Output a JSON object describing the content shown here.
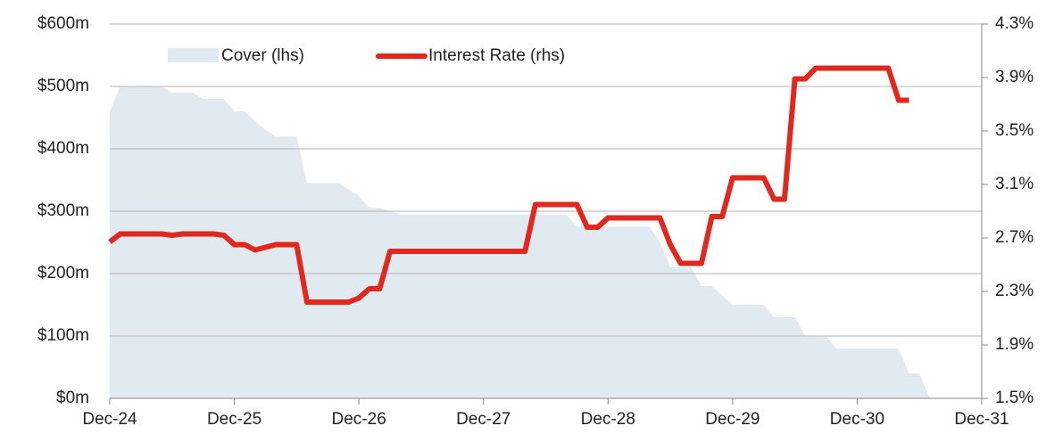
{
  "chart_data": {
    "type": "area-line",
    "x": [
      0,
      1,
      2,
      3,
      4,
      5,
      6,
      7,
      8,
      9,
      10,
      11,
      12,
      13,
      14,
      15,
      16,
      17,
      18,
      19,
      20,
      21,
      22,
      23,
      24,
      25,
      26,
      27,
      28,
      29,
      30,
      31,
      32,
      33,
      34,
      35,
      36,
      37,
      38,
      39,
      40,
      41,
      42,
      43,
      44,
      45,
      46,
      47,
      48,
      49,
      50,
      51,
      52,
      53,
      54,
      55,
      56,
      57,
      58,
      59,
      60,
      61,
      62,
      63,
      64,
      65,
      66,
      67,
      68,
      69,
      70,
      71,
      72,
      73,
      74,
      75,
      76,
      77,
      78,
      79
    ],
    "series": [
      {
        "name": "Cover (lhs)",
        "kind": "area",
        "color": "#e2eaf1",
        "values": [
          460,
          500,
          500,
          500,
          500,
          500,
          490,
          490,
          490,
          480,
          480,
          480,
          460,
          460,
          445,
          430,
          420,
          420,
          420,
          345,
          345,
          345,
          345,
          335,
          325,
          305,
          305,
          300,
          295,
          295,
          295,
          295,
          295,
          295,
          295,
          295,
          295,
          295,
          295,
          295,
          295,
          295,
          295,
          295,
          295,
          275,
          275,
          275,
          275,
          275,
          275,
          275,
          275,
          250,
          210,
          210,
          210,
          180,
          180,
          165,
          150,
          150,
          150,
          150,
          130,
          130,
          130,
          100,
          100,
          100,
          80,
          80,
          80,
          80,
          80,
          80,
          80,
          40,
          40,
          0
        ]
      },
      {
        "name": "Interest Rate (rhs)",
        "kind": "line",
        "axis": "y2",
        "color": "#e0281f",
        "values": [
          2.67,
          2.73,
          2.73,
          2.73,
          2.73,
          2.73,
          2.72,
          2.73,
          2.73,
          2.73,
          2.73,
          2.72,
          2.65,
          2.65,
          2.61,
          2.63,
          2.65,
          2.65,
          2.65,
          2.22,
          2.22,
          2.22,
          2.22,
          2.22,
          2.25,
          2.32,
          2.32,
          2.6,
          2.6,
          2.6,
          2.6,
          2.6,
          2.6,
          2.6,
          2.6,
          2.6,
          2.6,
          2.6,
          2.6,
          2.6,
          2.6,
          2.95,
          2.95,
          2.95,
          2.95,
          2.95,
          2.78,
          2.78,
          2.85,
          2.85,
          2.85,
          2.85,
          2.85,
          2.85,
          2.65,
          2.51,
          2.51,
          2.51,
          2.86,
          2.86,
          3.15,
          3.15,
          3.15,
          3.15,
          2.99,
          2.99,
          3.89,
          3.89,
          3.97,
          3.97,
          3.97,
          3.97,
          3.97,
          3.97,
          3.97,
          3.97,
          3.73,
          3.73,
          null,
          null
        ]
      }
    ],
    "xlim": [
      0,
      84
    ],
    "xticks": [
      {
        "value": 0,
        "label": "Dec-24"
      },
      {
        "value": 12,
        "label": "Dec-25"
      },
      {
        "value": 24,
        "label": "Dec-26"
      },
      {
        "value": 36,
        "label": "Dec-27"
      },
      {
        "value": 48,
        "label": "Dec-28"
      },
      {
        "value": 60,
        "label": "Dec-29"
      },
      {
        "value": 72,
        "label": "Dec-30"
      },
      {
        "value": 84,
        "label": "Dec-31"
      }
    ],
    "ylim": [
      0,
      600
    ],
    "yticks": [
      {
        "value": 0,
        "label": "$0m"
      },
      {
        "value": 100,
        "label": "$100m"
      },
      {
        "value": 200,
        "label": "$200m"
      },
      {
        "value": 300,
        "label": "$300m"
      },
      {
        "value": 400,
        "label": "$400m"
      },
      {
        "value": 500,
        "label": "$500m"
      },
      {
        "value": 600,
        "label": "$600m"
      }
    ],
    "y2lim": [
      1.5,
      4.3
    ],
    "y2ticks": [
      {
        "value": 1.5,
        "label": "1.5%"
      },
      {
        "value": 1.9,
        "label": "1.9%"
      },
      {
        "value": 2.3,
        "label": "2.3%"
      },
      {
        "value": 2.7,
        "label": "2.7%"
      },
      {
        "value": 3.1,
        "label": "3.1%"
      },
      {
        "value": 3.5,
        "label": "3.5%"
      },
      {
        "value": 3.9,
        "label": "3.9%"
      },
      {
        "value": 4.3,
        "label": "4.3%"
      }
    ],
    "grid": true
  }
}
